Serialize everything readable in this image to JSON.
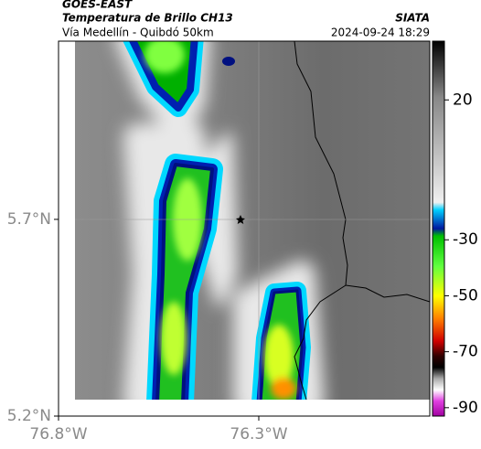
{
  "header": {
    "title": "GOES-EAST",
    "subtitle": "Temperatura de Brillo CH13",
    "route": "Vía Medellín - Quibdó 50km",
    "source": "SIATA",
    "timestamp": "2024-09-24 18:29"
  },
  "map": {
    "xlim": [
      -76.8,
      -75.873
    ],
    "ylim": [
      5.2,
      6.153
    ],
    "xticks": [
      {
        "value": -76.8,
        "label": "76.8°W"
      },
      {
        "value": -76.3,
        "label": "76.3°W"
      }
    ],
    "yticks": [
      {
        "value": 5.2,
        "label": "5.2°N"
      },
      {
        "value": 5.7,
        "label": "5.7°N"
      }
    ]
  },
  "colorbar": {
    "lim": [
      41,
      -93
    ],
    "ticks": [
      20,
      -30,
      -50,
      -70,
      -90
    ]
  }
}
